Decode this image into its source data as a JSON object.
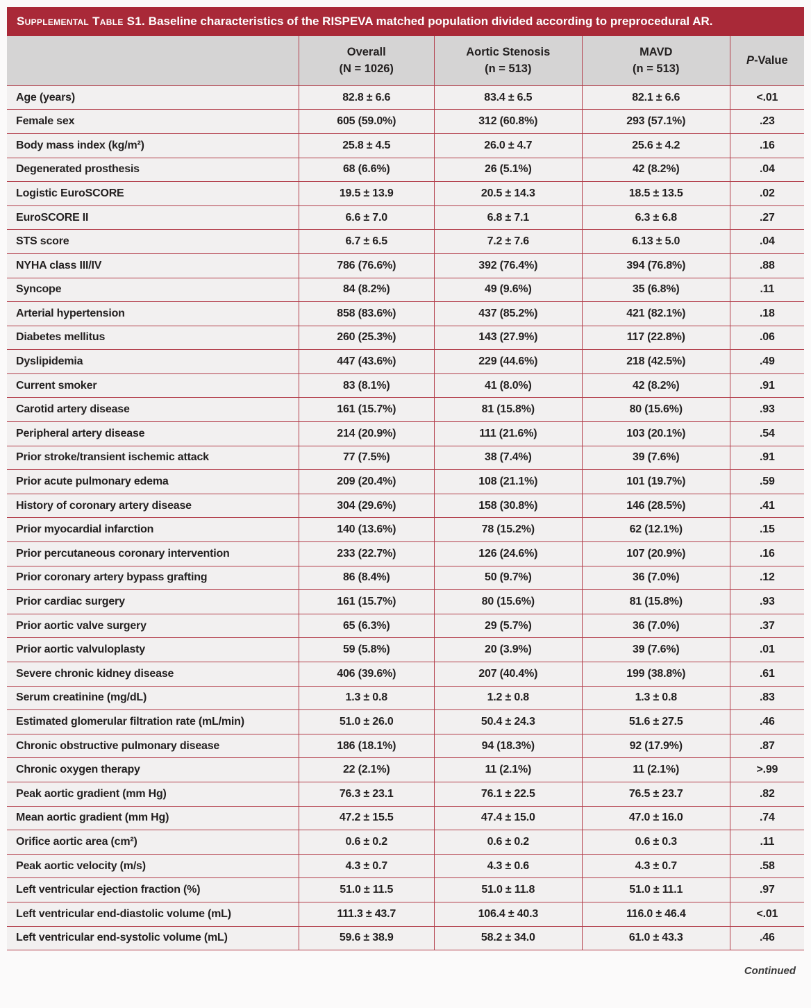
{
  "title": {
    "label": "Supplemental Table S1.",
    "text": " Baseline characteristics of the RISPEVA matched population divided according to preprocedural AR."
  },
  "table": {
    "columns": [
      {
        "name": "",
        "sub": ""
      },
      {
        "name": "Overall",
        "sub": "(N = 1026)"
      },
      {
        "name": "Aortic Stenosis",
        "sub": "(n = 513)"
      },
      {
        "name": "MAVD",
        "sub": "(n = 513)"
      },
      {
        "name_italic": "P",
        "name_rest": "-Value",
        "sub": ""
      }
    ],
    "rows": [
      [
        "Age (years)",
        "82.8 ± 6.6",
        "83.4 ± 6.5",
        "82.1 ± 6.6",
        "<.01"
      ],
      [
        "Female sex",
        "605 (59.0%)",
        "312 (60.8%)",
        "293 (57.1%)",
        ".23"
      ],
      [
        "Body mass index (kg/m²)",
        "25.8 ± 4.5",
        "26.0 ± 4.7",
        "25.6 ± 4.2",
        ".16"
      ],
      [
        "Degenerated prosthesis",
        "68 (6.6%)",
        "26 (5.1%)",
        "42 (8.2%)",
        ".04"
      ],
      [
        "Logistic EuroSCORE",
        "19.5 ± 13.9",
        "20.5 ± 14.3",
        "18.5 ± 13.5",
        ".02"
      ],
      [
        "EuroSCORE II",
        "6.6 ± 7.0",
        "6.8 ± 7.1",
        "6.3 ± 6.8",
        ".27"
      ],
      [
        "STS score",
        "6.7 ± 6.5",
        "7.2 ± 7.6",
        "6.13 ± 5.0",
        ".04"
      ],
      [
        "NYHA class III/IV",
        "786 (76.6%)",
        "392 (76.4%)",
        "394 (76.8%)",
        ".88"
      ],
      [
        "Syncope",
        "84 (8.2%)",
        "49 (9.6%)",
        "35 (6.8%)",
        ".11"
      ],
      [
        "Arterial hypertension",
        "858 (83.6%)",
        "437 (85.2%)",
        "421 (82.1%)",
        ".18"
      ],
      [
        "Diabetes mellitus",
        "260 (25.3%)",
        "143 (27.9%)",
        "117 (22.8%)",
        ".06"
      ],
      [
        "Dyslipidemia",
        "447 (43.6%)",
        "229 (44.6%)",
        "218 (42.5%)",
        ".49"
      ],
      [
        "Current smoker",
        "83 (8.1%)",
        "41 (8.0%)",
        "42 (8.2%)",
        ".91"
      ],
      [
        "Carotid artery disease",
        "161 (15.7%)",
        "81 (15.8%)",
        "80 (15.6%)",
        ".93"
      ],
      [
        "Peripheral artery disease",
        "214 (20.9%)",
        "111 (21.6%)",
        "103 (20.1%)",
        ".54"
      ],
      [
        "Prior stroke/transient ischemic attack",
        "77 (7.5%)",
        "38 (7.4%)",
        "39 (7.6%)",
        ".91"
      ],
      [
        "Prior acute pulmonary edema",
        "209 (20.4%)",
        "108 (21.1%)",
        "101 (19.7%)",
        ".59"
      ],
      [
        "History of coronary artery disease",
        "304 (29.6%)",
        "158 (30.8%)",
        "146 (28.5%)",
        ".41"
      ],
      [
        "Prior myocardial infarction",
        "140 (13.6%)",
        "78 (15.2%)",
        "62 (12.1%)",
        ".15"
      ],
      [
        "Prior percutaneous coronary intervention",
        "233 (22.7%)",
        "126 (24.6%)",
        "107 (20.9%)",
        ".16"
      ],
      [
        "Prior coronary artery bypass grafting",
        "86 (8.4%)",
        "50 (9.7%)",
        "36 (7.0%)",
        ".12"
      ],
      [
        "Prior cardiac surgery",
        "161 (15.7%)",
        "80 (15.6%)",
        "81 (15.8%)",
        ".93"
      ],
      [
        "Prior aortic valve surgery",
        "65 (6.3%)",
        "29 (5.7%)",
        "36 (7.0%)",
        ".37"
      ],
      [
        "Prior aortic valvuloplasty",
        "59 (5.8%)",
        "20 (3.9%)",
        "39 (7.6%)",
        ".01"
      ],
      [
        "Severe chronic kidney disease",
        "406 (39.6%)",
        "207 (40.4%)",
        "199 (38.8%)",
        ".61"
      ],
      [
        "Serum creatinine (mg/dL)",
        "1.3 ± 0.8",
        "1.2 ± 0.8",
        "1.3 ± 0.8",
        ".83"
      ],
      [
        "Estimated glomerular filtration rate (mL/min)",
        "51.0 ± 26.0",
        "50.4 ± 24.3",
        "51.6 ± 27.5",
        ".46"
      ],
      [
        "Chronic obstructive pulmonary disease",
        "186 (18.1%)",
        "94 (18.3%)",
        "92 (17.9%)",
        ".87"
      ],
      [
        "Chronic oxygen therapy",
        "22 (2.1%)",
        "11 (2.1%)",
        "11 (2.1%)",
        ">.99"
      ],
      [
        "Peak aortic gradient (mm Hg)",
        "76.3 ± 23.1",
        "76.1 ± 22.5",
        "76.5 ± 23.7",
        ".82"
      ],
      [
        "Mean aortic gradient (mm Hg)",
        "47.2 ± 15.5",
        "47.4 ± 15.0",
        "47.0 ± 16.0",
        ".74"
      ],
      [
        "Orifice aortic area (cm²)",
        "0.6 ± 0.2",
        "0.6 ± 0.2",
        "0.6 ± 0.3",
        ".11"
      ],
      [
        "Peak aortic velocity (m/s)",
        "4.3 ± 0.7",
        "4.3 ± 0.6",
        "4.3 ± 0.7",
        ".58"
      ],
      [
        "Left ventricular ejection fraction (%)",
        "51.0 ± 11.5",
        "51.0 ± 11.8",
        "51.0 ± 11.1",
        ".97"
      ],
      [
        "Left ventricular end-diastolic volume (mL)",
        "111.3 ± 43.7",
        "106.4 ± 40.3",
        "116.0 ± 46.4",
        "<.01"
      ],
      [
        "Left ventricular end-systolic volume (mL)",
        "59.6 ± 38.9",
        "58.2 ± 34.0",
        "61.0 ± 43.3",
        ".46"
      ]
    ]
  },
  "footer": {
    "continued": "Continued"
  },
  "colors": {
    "title_bar": "#A92938",
    "rule_red": "#B23C49",
    "header_gray": "#D5D4D4",
    "row_bg": "#F2F0F0",
    "text": "#221F1F"
  }
}
